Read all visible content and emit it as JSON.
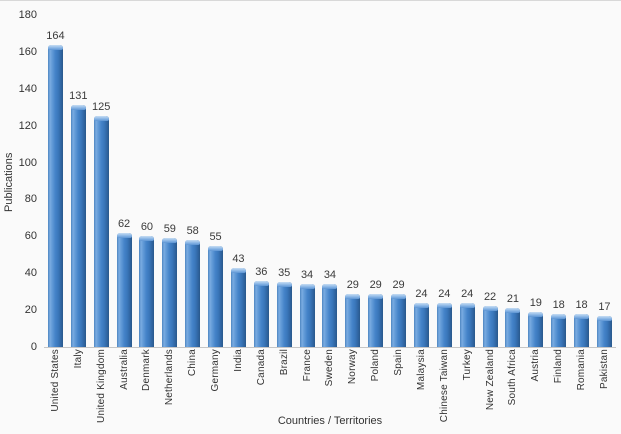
{
  "chart_data": {
    "type": "bar",
    "title": "",
    "xlabel": "Countries / Territories",
    "ylabel": "Publications",
    "categories": [
      "United States",
      "Italy",
      "United Kingdom",
      "Australia",
      "Denmark",
      "Netherlands",
      "China",
      "Germany",
      "India",
      "Canada",
      "Brazil",
      "France",
      "Sweden",
      "Norway",
      "Poland",
      "Spain",
      "Malaysia",
      "Chinese Taiwan",
      "Turkey",
      "New Zealand",
      "South Africa",
      "Austria",
      "Finland",
      "Romania",
      "Pakistan"
    ],
    "values": [
      164,
      131,
      125,
      62,
      60,
      59,
      58,
      55,
      43,
      36,
      35,
      34,
      34,
      29,
      29,
      29,
      24,
      24,
      24,
      22,
      21,
      19,
      18,
      18,
      17
    ],
    "ylim": [
      0,
      180
    ],
    "yticks": [
      0,
      20,
      40,
      60,
      80,
      100,
      120,
      140,
      160,
      180
    ],
    "grid": false,
    "legend": false,
    "value_labels_shown": true,
    "colors": {
      "bar_main": "#3e7cc1",
      "bar_highlight": "#7aace1",
      "bar_edge_dark": "#29588b",
      "bar_cap_light": "#c7ddf3",
      "text": "#333333",
      "axis_line": "#c6c6c6",
      "background": "#fafafa"
    }
  }
}
